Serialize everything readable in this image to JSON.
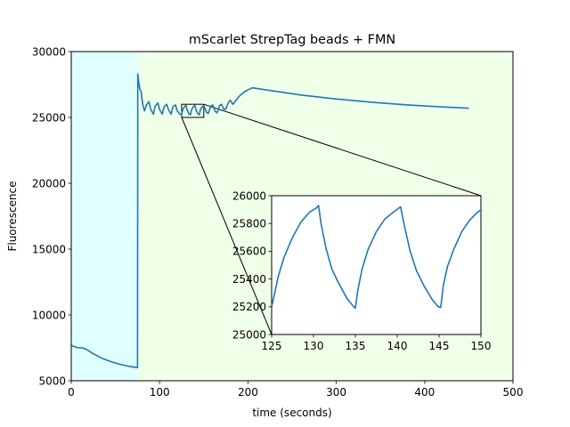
{
  "chart_data": [
    {
      "type": "line",
      "title": "mScarlet StrepTag beads + FMN",
      "xlabel": "time (seconds)",
      "ylabel": "Fluorescence",
      "xlim": [
        0,
        500
      ],
      "ylim": [
        5000,
        30000
      ],
      "xticks": [
        "0",
        "100",
        "200",
        "300",
        "400",
        "500"
      ],
      "yticks": [
        "5000",
        "10000",
        "15000",
        "20000",
        "25000",
        "30000"
      ],
      "grid": false,
      "background_regions": [
        {
          "x": [
            0,
            75
          ],
          "color": "#e0ffff"
        },
        {
          "x": [
            75,
            500
          ],
          "color": "#f0ffe8"
        }
      ],
      "series": [
        {
          "color": "#1f77b4",
          "points": [
            [
              0,
              7700
            ],
            [
              3,
              7600
            ],
            [
              8,
              7500
            ],
            [
              13,
              7500
            ],
            [
              18,
              7350
            ],
            [
              25,
              7050
            ],
            [
              35,
              6700
            ],
            [
              45,
              6450
            ],
            [
              55,
              6250
            ],
            [
              65,
              6100
            ],
            [
              74,
              6000
            ],
            [
              75,
              6000
            ],
            [
              75.3,
              28300
            ],
            [
              76,
              27900
            ],
            [
              77,
              27400
            ],
            [
              78,
              27100
            ],
            [
              79,
              27000
            ],
            [
              80,
              26400
            ],
            [
              81.5,
              25800
            ],
            [
              83,
              25500
            ],
            [
              85,
              25950
            ],
            [
              88,
              26200
            ],
            [
              90,
              25600
            ],
            [
              93,
              25250
            ],
            [
              95,
              25850
            ],
            [
              98,
              26100
            ],
            [
              100,
              25600
            ],
            [
              103,
              25250
            ],
            [
              105,
              25800
            ],
            [
              108,
              26000
            ],
            [
              110,
              25600
            ],
            [
              113,
              25250
            ],
            [
              115,
              25800
            ],
            [
              118,
              25950
            ],
            [
              120,
              25500
            ],
            [
              123,
              25250
            ],
            [
              125,
              25200
            ],
            [
              126,
              25550
            ],
            [
              128,
              25800
            ],
            [
              130,
              25920
            ],
            [
              131,
              25600
            ],
            [
              133,
              25300
            ],
            [
              135,
              25200
            ],
            [
              136,
              25550
            ],
            [
              138,
              25800
            ],
            [
              140,
              25920
            ],
            [
              141,
              25600
            ],
            [
              143,
              25300
            ],
            [
              145,
              25200
            ],
            [
              146,
              25550
            ],
            [
              148,
              25800
            ],
            [
              150,
              25900
            ],
            [
              153,
              25400
            ],
            [
              155,
              25300
            ],
            [
              158,
              25850
            ],
            [
              160,
              25950
            ],
            [
              163,
              25450
            ],
            [
              165,
              25350
            ],
            [
              168,
              25900
            ],
            [
              170,
              26000
            ],
            [
              173,
              25600
            ],
            [
              175,
              25650
            ],
            [
              178,
              26150
            ],
            [
              180,
              26300
            ],
            [
              183,
              26000
            ],
            [
              186,
              26250
            ],
            [
              190,
              26600
            ],
            [
              195,
              26900
            ],
            [
              200,
              27100
            ],
            [
              205,
              27250
            ],
            [
              210,
              27200
            ],
            [
              230,
              27000
            ],
            [
              260,
              26700
            ],
            [
              300,
              26400
            ],
            [
              340,
              26150
            ],
            [
              380,
              25950
            ],
            [
              420,
              25800
            ],
            [
              450,
              25700
            ]
          ]
        }
      ]
    },
    {
      "type": "line",
      "title": "",
      "xlim": [
        125,
        150
      ],
      "ylim": [
        25000,
        26000
      ],
      "xticks": [
        "125",
        "130",
        "135",
        "140",
        "145",
        "150"
      ],
      "yticks": [
        "25000",
        "25200",
        "25400",
        "25600",
        "25800",
        "26000"
      ],
      "series": [
        {
          "color": "#1f77b4",
          "points": [
            [
              125,
              25200
            ],
            [
              125.3,
              25280
            ],
            [
              125.8,
              25420
            ],
            [
              126.5,
              25560
            ],
            [
              127.5,
              25700
            ],
            [
              128.5,
              25810
            ],
            [
              129.5,
              25880
            ],
            [
              130.3,
              25910
            ],
            [
              130.6,
              25930
            ],
            [
              130.9,
              25800
            ],
            [
              131.5,
              25620
            ],
            [
              132.2,
              25470
            ],
            [
              133,
              25370
            ],
            [
              134,
              25260
            ],
            [
              134.8,
              25200
            ],
            [
              135,
              25190
            ],
            [
              135.3,
              25320
            ],
            [
              135.8,
              25470
            ],
            [
              136.5,
              25610
            ],
            [
              137.5,
              25740
            ],
            [
              138.5,
              25830
            ],
            [
              139.5,
              25880
            ],
            [
              140.4,
              25920
            ],
            [
              140.8,
              25800
            ],
            [
              141.5,
              25610
            ],
            [
              142.3,
              25460
            ],
            [
              143.2,
              25350
            ],
            [
              144.2,
              25250
            ],
            [
              144.9,
              25200
            ],
            [
              145.2,
              25195
            ],
            [
              145.5,
              25350
            ],
            [
              146,
              25490
            ],
            [
              146.8,
              25620
            ],
            [
              147.7,
              25740
            ],
            [
              148.6,
              25820
            ],
            [
              149.4,
              25870
            ],
            [
              150,
              25900
            ]
          ]
        }
      ]
    }
  ]
}
